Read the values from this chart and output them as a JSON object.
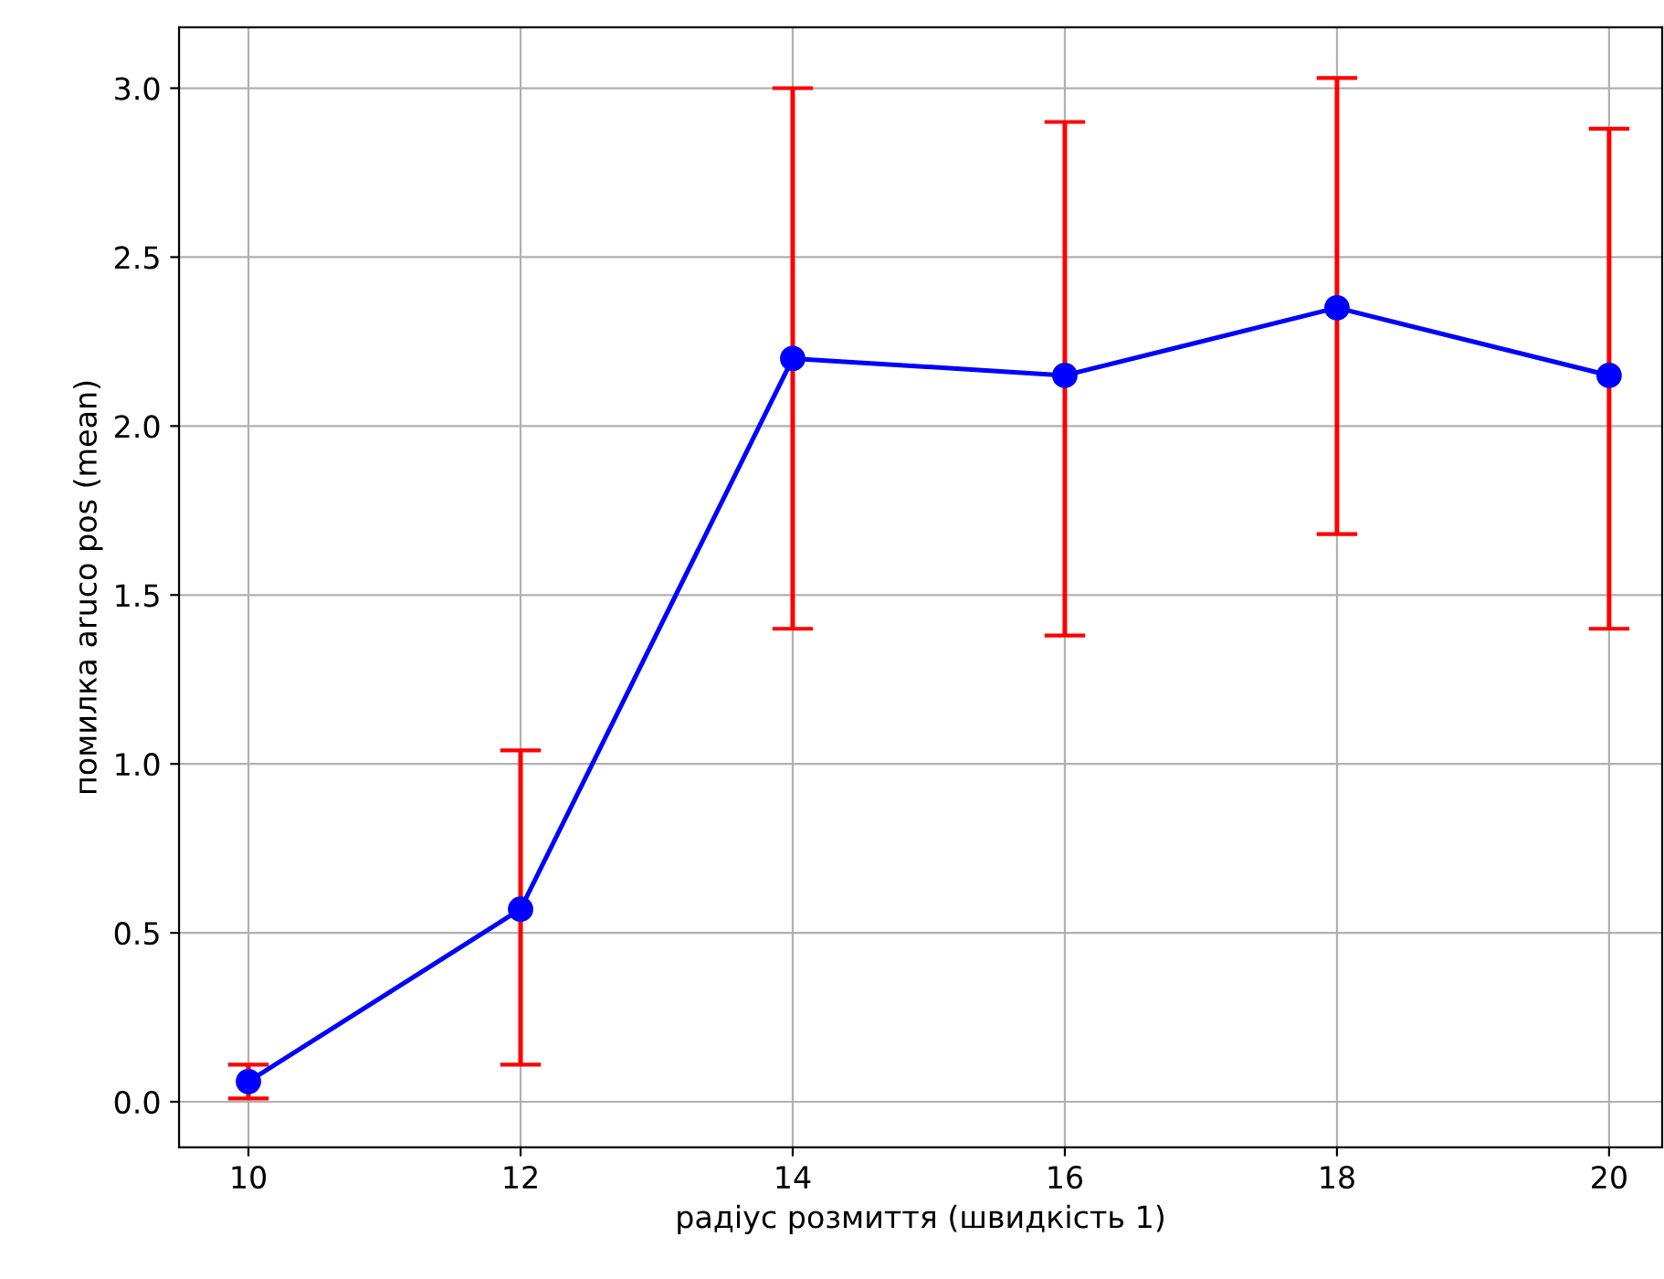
{
  "chart_data": {
    "type": "line",
    "xlabel": "радіус розмиття (швидкість 1)",
    "ylabel": "помилка aruco pos (mean)",
    "x": [
      10,
      12,
      14,
      16,
      18,
      20
    ],
    "series": [
      {
        "color": "#0000ff",
        "values": [
          0.06,
          0.57,
          2.2,
          2.15,
          2.35,
          2.15
        ],
        "errors": [
          [
            0.01,
            0.11
          ],
          [
            0.11,
            1.04
          ],
          [
            1.4,
            3.0
          ],
          [
            1.38,
            2.9
          ],
          [
            1.68,
            3.03
          ],
          [
            1.4,
            2.88
          ]
        ]
      }
    ],
    "marker": "circle",
    "line_style": "solid",
    "grid": true,
    "xlim": [
      9.49,
      20.39
    ],
    "xticks": [
      10,
      12,
      14,
      16,
      18,
      20
    ],
    "ylim": [
      -0.135,
      3.18
    ],
    "yticks": [
      {
        "value": 0,
        "label": "0.0"
      },
      {
        "value": 0.5,
        "label": "0.5"
      },
      {
        "value": 1,
        "label": "1.0"
      },
      {
        "value": 1.5,
        "label": "1.5"
      },
      {
        "value": 2,
        "label": "2.0"
      },
      {
        "value": 2.5,
        "label": "2.5"
      },
      {
        "value": 3,
        "label": "3.0"
      }
    ]
  }
}
